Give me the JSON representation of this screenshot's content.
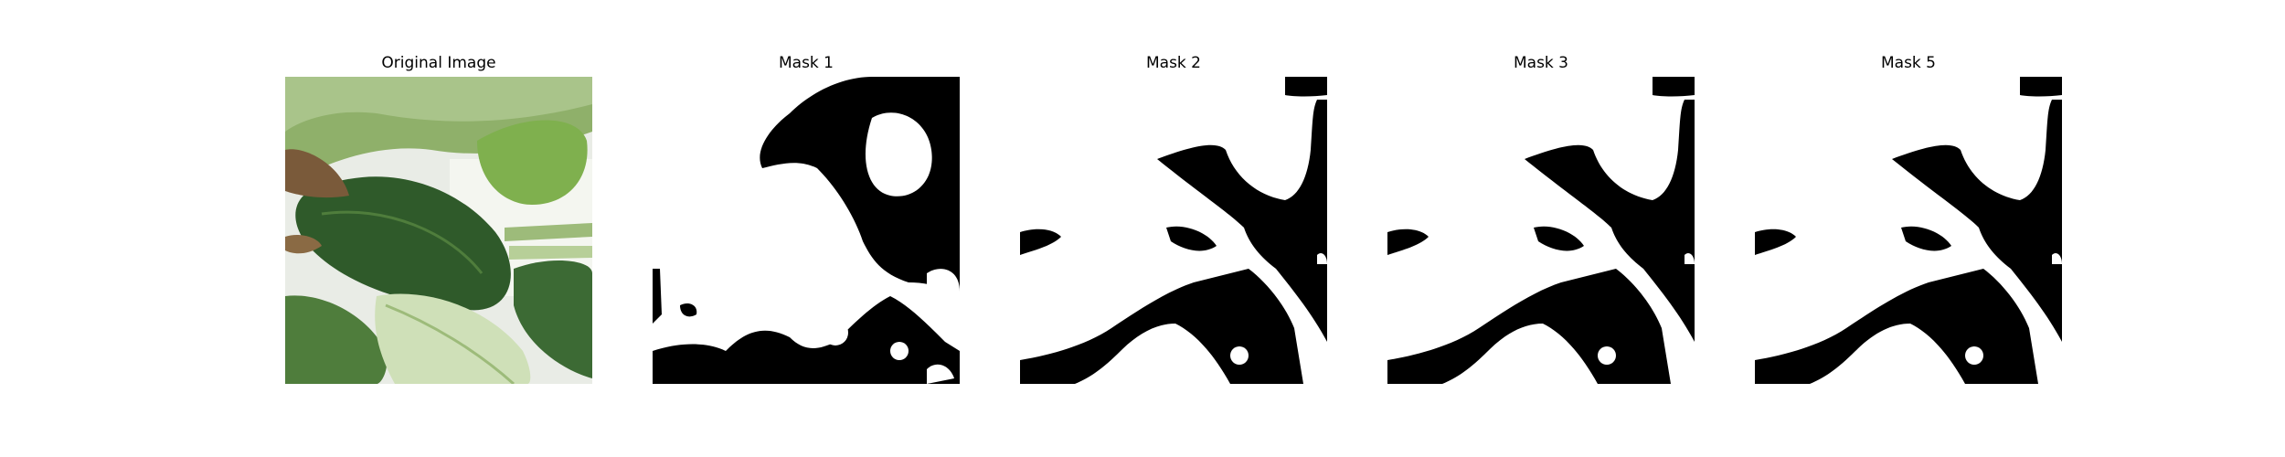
{
  "figure": {
    "panels": [
      {
        "key": "original",
        "title": "Original Image",
        "kind": "photo"
      },
      {
        "key": "mask1",
        "title": "Mask 1",
        "kind": "mask"
      },
      {
        "key": "mask2",
        "title": "Mask 2",
        "kind": "mask"
      },
      {
        "key": "mask3",
        "title": "Mask 3",
        "kind": "mask"
      },
      {
        "key": "mask5",
        "title": "Mask 5",
        "kind": "mask"
      }
    ]
  },
  "colors": {
    "mask_foreground": "#ffffff",
    "mask_background": "#000000",
    "leaf_dark": "#2f5a2a",
    "leaf_mid": "#4f7d3c",
    "leaf_light": "#8fb06a",
    "leaf_pale": "#cfe0b8",
    "background_light": "#e9ece6"
  }
}
